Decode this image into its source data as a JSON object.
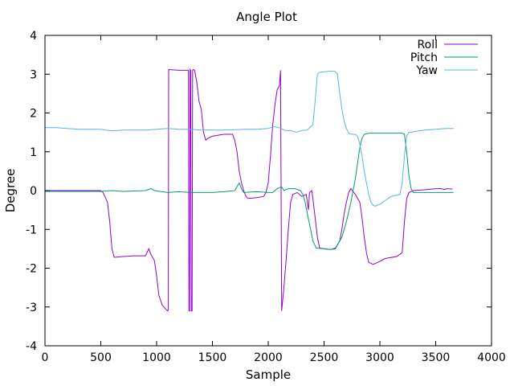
{
  "chart_data": {
    "type": "line",
    "title": "Angle Plot",
    "xlabel": "Sample",
    "ylabel": "Degree",
    "xlim": [
      0,
      4000
    ],
    "ylim": [
      -4,
      4
    ],
    "xticks": [
      0,
      500,
      1000,
      1500,
      2000,
      2500,
      3000,
      3500,
      4000
    ],
    "yticks": [
      -4,
      -3,
      -2,
      -1,
      0,
      1,
      2,
      3,
      4
    ],
    "grid": false,
    "legend": "top-right",
    "series": [
      {
        "name": "Roll",
        "color": "#9400d3",
        "points": [
          [
            0,
            0
          ],
          [
            200,
            0
          ],
          [
            480,
            0
          ],
          [
            500,
            0
          ],
          [
            520,
            -0.05
          ],
          [
            560,
            -0.3
          ],
          [
            580,
            -0.8
          ],
          [
            600,
            -1.5
          ],
          [
            620,
            -1.72
          ],
          [
            700,
            -1.7
          ],
          [
            800,
            -1.68
          ],
          [
            900,
            -1.68
          ],
          [
            930,
            -1.5
          ],
          [
            950,
            -1.65
          ],
          [
            980,
            -1.8
          ],
          [
            1000,
            -2.2
          ],
          [
            1020,
            -2.7
          ],
          [
            1050,
            -2.95
          ],
          [
            1080,
            -3.05
          ],
          [
            1100,
            -3.1
          ],
          [
            1105,
            -3.05
          ],
          [
            1108,
            3.12
          ],
          [
            1200,
            3.1
          ],
          [
            1285,
            3.1
          ],
          [
            1290,
            -3.1
          ],
          [
            1295,
            -3.1
          ],
          [
            1300,
            3.12
          ],
          [
            1305,
            3.1
          ],
          [
            1310,
            -3.1
          ],
          [
            1318,
            -3.1
          ],
          [
            1322,
            3.1
          ],
          [
            1330,
            3.12
          ],
          [
            1340,
            3.1
          ],
          [
            1360,
            2.8
          ],
          [
            1380,
            2.3
          ],
          [
            1400,
            2.1
          ],
          [
            1420,
            1.5
          ],
          [
            1440,
            1.3
          ],
          [
            1460,
            1.35
          ],
          [
            1500,
            1.4
          ],
          [
            1600,
            1.45
          ],
          [
            1680,
            1.45
          ],
          [
            1700,
            1.3
          ],
          [
            1720,
            1.0
          ],
          [
            1740,
            0.5
          ],
          [
            1760,
            0.2
          ],
          [
            1780,
            0
          ],
          [
            1800,
            -0.15
          ],
          [
            1820,
            -0.2
          ],
          [
            1900,
            -0.18
          ],
          [
            1960,
            -0.15
          ],
          [
            1980,
            -0.05
          ],
          [
            2000,
            0.2
          ],
          [
            2020,
            0.9
          ],
          [
            2040,
            1.7
          ],
          [
            2060,
            2.2
          ],
          [
            2080,
            2.6
          ],
          [
            2100,
            2.7
          ],
          [
            2110,
            3.1
          ],
          [
            2115,
            0
          ],
          [
            2120,
            -3.1
          ],
          [
            2140,
            -2.5
          ],
          [
            2160,
            -1.8
          ],
          [
            2180,
            -1.0
          ],
          [
            2200,
            -0.3
          ],
          [
            2220,
            -0.1
          ],
          [
            2260,
            -0.05
          ],
          [
            2300,
            -0.15
          ],
          [
            2340,
            -0.1
          ],
          [
            2360,
            -0.5
          ],
          [
            2370,
            -0.05
          ],
          [
            2390,
            0
          ],
          [
            2400,
            -0.2
          ],
          [
            2420,
            -0.7
          ],
          [
            2440,
            -1.2
          ],
          [
            2460,
            -1.48
          ],
          [
            2500,
            -1.5
          ],
          [
            2560,
            -1.52
          ],
          [
            2600,
            -1.5
          ],
          [
            2640,
            -1.3
          ],
          [
            2660,
            -1.0
          ],
          [
            2680,
            -0.6
          ],
          [
            2700,
            -0.3
          ],
          [
            2720,
            -0.05
          ],
          [
            2740,
            0.05
          ],
          [
            2780,
            -0.1
          ],
          [
            2820,
            -0.3
          ],
          [
            2840,
            -0.7
          ],
          [
            2860,
            -1.2
          ],
          [
            2880,
            -1.6
          ],
          [
            2900,
            -1.85
          ],
          [
            2940,
            -1.9
          ],
          [
            2980,
            -1.85
          ],
          [
            3050,
            -1.75
          ],
          [
            3150,
            -1.7
          ],
          [
            3200,
            -1.6
          ],
          [
            3220,
            -0.8
          ],
          [
            3240,
            -0.2
          ],
          [
            3260,
            -0.05
          ],
          [
            3300,
            0
          ],
          [
            3400,
            0.02
          ],
          [
            3500,
            0.05
          ],
          [
            3550,
            0.05
          ],
          [
            3580,
            0.03
          ],
          [
            3600,
            0.05
          ],
          [
            3650,
            0.04
          ]
        ]
      },
      {
        "name": "Pitch",
        "color": "#009e73",
        "points": [
          [
            0,
            -0.02
          ],
          [
            500,
            -0.02
          ],
          [
            600,
            0.0
          ],
          [
            700,
            -0.02
          ],
          [
            900,
            0.0
          ],
          [
            950,
            0.05
          ],
          [
            980,
            0.0
          ],
          [
            1100,
            -0.05
          ],
          [
            1200,
            -0.03
          ],
          [
            1300,
            -0.05
          ],
          [
            1400,
            -0.05
          ],
          [
            1500,
            -0.05
          ],
          [
            1600,
            -0.03
          ],
          [
            1700,
            0.0
          ],
          [
            1720,
            0.1
          ],
          [
            1740,
            0.2
          ],
          [
            1760,
            0.05
          ],
          [
            1780,
            -0.05
          ],
          [
            1900,
            -0.03
          ],
          [
            2000,
            -0.05
          ],
          [
            2040,
            -0.05
          ],
          [
            2080,
            0.05
          ],
          [
            2120,
            0.1
          ],
          [
            2140,
            0.0
          ],
          [
            2180,
            0.05
          ],
          [
            2240,
            0.05
          ],
          [
            2290,
            0.0
          ],
          [
            2310,
            -0.1
          ],
          [
            2330,
            -0.3
          ],
          [
            2350,
            -0.6
          ],
          [
            2380,
            -1.0
          ],
          [
            2400,
            -1.3
          ],
          [
            2430,
            -1.48
          ],
          [
            2500,
            -1.5
          ],
          [
            2560,
            -1.52
          ],
          [
            2600,
            -1.48
          ],
          [
            2620,
            -1.4
          ],
          [
            2660,
            -1.2
          ],
          [
            2700,
            -0.8
          ],
          [
            2740,
            -0.3
          ],
          [
            2760,
            0.0
          ],
          [
            2780,
            0.3
          ],
          [
            2800,
            0.7
          ],
          [
            2820,
            1.1
          ],
          [
            2840,
            1.35
          ],
          [
            2860,
            1.45
          ],
          [
            2900,
            1.48
          ],
          [
            3000,
            1.48
          ],
          [
            3100,
            1.48
          ],
          [
            3200,
            1.48
          ],
          [
            3220,
            1.45
          ],
          [
            3240,
            1.0
          ],
          [
            3260,
            0.4
          ],
          [
            3280,
            0.05
          ],
          [
            3300,
            -0.05
          ],
          [
            3400,
            -0.05
          ],
          [
            3500,
            -0.05
          ],
          [
            3660,
            -0.05
          ]
        ]
      },
      {
        "name": "Yaw",
        "color": "#56b4e9",
        "points": [
          [
            0,
            1.62
          ],
          [
            100,
            1.62
          ],
          [
            200,
            1.6
          ],
          [
            300,
            1.58
          ],
          [
            400,
            1.58
          ],
          [
            500,
            1.58
          ],
          [
            600,
            1.54
          ],
          [
            700,
            1.56
          ],
          [
            800,
            1.56
          ],
          [
            900,
            1.56
          ],
          [
            1000,
            1.58
          ],
          [
            1100,
            1.6
          ],
          [
            1200,
            1.58
          ],
          [
            1300,
            1.58
          ],
          [
            1400,
            1.56
          ],
          [
            1500,
            1.56
          ],
          [
            1600,
            1.56
          ],
          [
            1700,
            1.57
          ],
          [
            1800,
            1.58
          ],
          [
            1900,
            1.58
          ],
          [
            2000,
            1.6
          ],
          [
            2050,
            1.65
          ],
          [
            2100,
            1.62
          ],
          [
            2150,
            1.55
          ],
          [
            2200,
            1.55
          ],
          [
            2250,
            1.5
          ],
          [
            2300,
            1.55
          ],
          [
            2350,
            1.56
          ],
          [
            2380,
            1.65
          ],
          [
            2400,
            1.7
          ],
          [
            2420,
            2.3
          ],
          [
            2440,
            3.0
          ],
          [
            2460,
            3.05
          ],
          [
            2500,
            3.06
          ],
          [
            2560,
            3.08
          ],
          [
            2600,
            3.07
          ],
          [
            2620,
            3.0
          ],
          [
            2640,
            2.5
          ],
          [
            2660,
            2.1
          ],
          [
            2680,
            1.8
          ],
          [
            2700,
            1.6
          ],
          [
            2720,
            1.48
          ],
          [
            2740,
            1.46
          ],
          [
            2760,
            1.45
          ],
          [
            2780,
            1.45
          ],
          [
            2800,
            1.4
          ],
          [
            2820,
            1.2
          ],
          [
            2840,
            0.9
          ],
          [
            2860,
            0.5
          ],
          [
            2880,
            0.2
          ],
          [
            2900,
            -0.1
          ],
          [
            2920,
            -0.3
          ],
          [
            2940,
            -0.38
          ],
          [
            2960,
            -0.4
          ],
          [
            3000,
            -0.35
          ],
          [
            3050,
            -0.25
          ],
          [
            3100,
            -0.15
          ],
          [
            3150,
            -0.12
          ],
          [
            3180,
            -0.1
          ],
          [
            3200,
            0.2
          ],
          [
            3220,
            0.9
          ],
          [
            3240,
            1.4
          ],
          [
            3260,
            1.5
          ],
          [
            3280,
            1.5
          ],
          [
            3300,
            1.52
          ],
          [
            3400,
            1.56
          ],
          [
            3500,
            1.58
          ],
          [
            3600,
            1.6
          ],
          [
            3660,
            1.6
          ]
        ]
      }
    ]
  }
}
